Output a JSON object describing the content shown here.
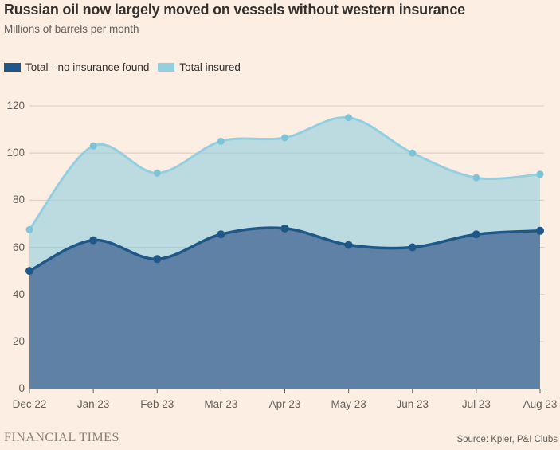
{
  "chart_data": {
    "type": "area",
    "stacked": true,
    "title": "Russian oil now largely moved on vessels without western insurance",
    "subtitle": "Millions of barrels per month",
    "x": [
      "Dec 22",
      "Jan 23",
      "Feb 23",
      "Mar 23",
      "Apr 23",
      "May 23",
      "Jun 23",
      "Jul 23",
      "Aug 23"
    ],
    "series": [
      {
        "name": "Total - no insurance found",
        "values": [
          50,
          63,
          55,
          65.5,
          68,
          61,
          60,
          65.5,
          67
        ],
        "line_color": "#1F5788",
        "fill_color": "#5F81A6",
        "marker_color": "#1F5788"
      },
      {
        "name": "Total insured",
        "values": [
          17.5,
          40,
          36.5,
          39.5,
          38.5,
          54,
          40,
          24,
          24
        ],
        "line_color": "#93CFE0",
        "fill_color": "rgba(147,207,224,0.62)",
        "marker_color": "#7EC4D9"
      }
    ],
    "top_line_totals": [
      67.5,
      103,
      91.5,
      105,
      106.5,
      115,
      100,
      89.5,
      91
    ],
    "ylim": [
      0,
      120
    ],
    "y_ticks": [
      0,
      20,
      40,
      60,
      80,
      100,
      120
    ],
    "grid": "horizontal",
    "legend_position": "top-left"
  },
  "footer": {
    "brand": "FINANCIAL TIMES",
    "source": "Source: Kpler, P&I Clubs"
  },
  "colors": {
    "background": "#FCEEE2",
    "gridline": "#D8CCC0",
    "axis": "#66605C",
    "text_primary": "#33302E",
    "text_secondary": "#655F5A"
  }
}
